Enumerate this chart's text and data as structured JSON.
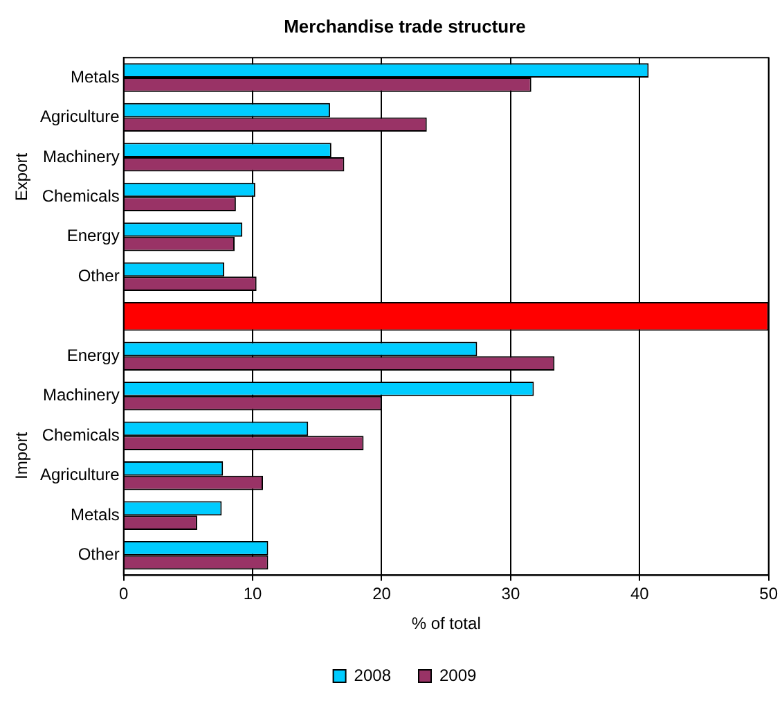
{
  "chart_data": {
    "type": "bar",
    "orientation": "horizontal",
    "title": "Merchandise trade structure",
    "xlabel": "% of total",
    "categories": [
      "Metals",
      "Agriculture",
      "Machinery",
      "Chemicals",
      "Energy",
      "Other",
      null,
      "Energy",
      "Machinery",
      "Chemicals",
      "Agriculture",
      "Metals",
      "Other"
    ],
    "series": [
      {
        "name": "2008",
        "color": "#00ccff",
        "values": [
          40.7,
          16.0,
          16.1,
          10.2,
          9.2,
          7.8,
          null,
          27.4,
          31.8,
          14.3,
          7.7,
          7.6,
          11.2
        ]
      },
      {
        "name": "2009",
        "color": "#993366",
        "values": [
          31.6,
          23.5,
          17.1,
          8.7,
          8.6,
          10.3,
          null,
          33.4,
          20.0,
          18.6,
          10.8,
          5.7,
          11.2
        ]
      },
      {
        "color": "#ff0000",
        "values": [
          null,
          null,
          null,
          null,
          null,
          null,
          50,
          null,
          null,
          null,
          null,
          null,
          null
        ]
      }
    ],
    "xlim": [
      0,
      50
    ],
    "xticks": [
      0,
      10,
      20,
      30,
      40,
      50
    ],
    "grid": "x",
    "legend": "bottom",
    "annotations": [
      "Export",
      "Import"
    ]
  }
}
